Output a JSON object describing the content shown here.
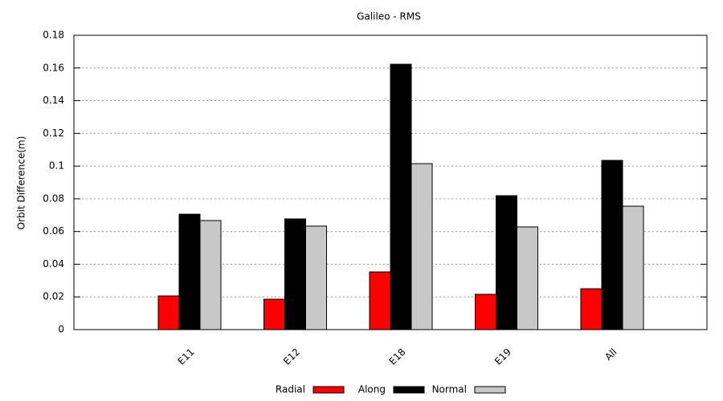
{
  "chart_data": {
    "type": "bar",
    "title": "Galileo - RMS",
    "y_label": "Orbit Difference(m)",
    "categories": [
      "E11",
      "E12",
      "E18",
      "E19",
      "All"
    ],
    "series": [
      {
        "name": "Radial",
        "color": "#ff0000",
        "values": [
          0.0206,
          0.0186,
          0.0353,
          0.0216,
          0.025
        ]
      },
      {
        "name": "Along",
        "color": "#000000",
        "values": [
          0.0706,
          0.0677,
          0.1623,
          0.0819,
          0.1035
        ]
      },
      {
        "name": "Normal",
        "color": "#c8c8c8",
        "values": [
          0.0667,
          0.0633,
          0.1015,
          0.0628,
          0.0755
        ]
      }
    ],
    "ylim": [
      0,
      0.18
    ],
    "yticks": [
      0,
      0.02,
      0.04,
      0.06,
      0.08,
      0.1,
      0.12,
      0.14,
      0.16,
      0.18
    ],
    "grid": true
  }
}
